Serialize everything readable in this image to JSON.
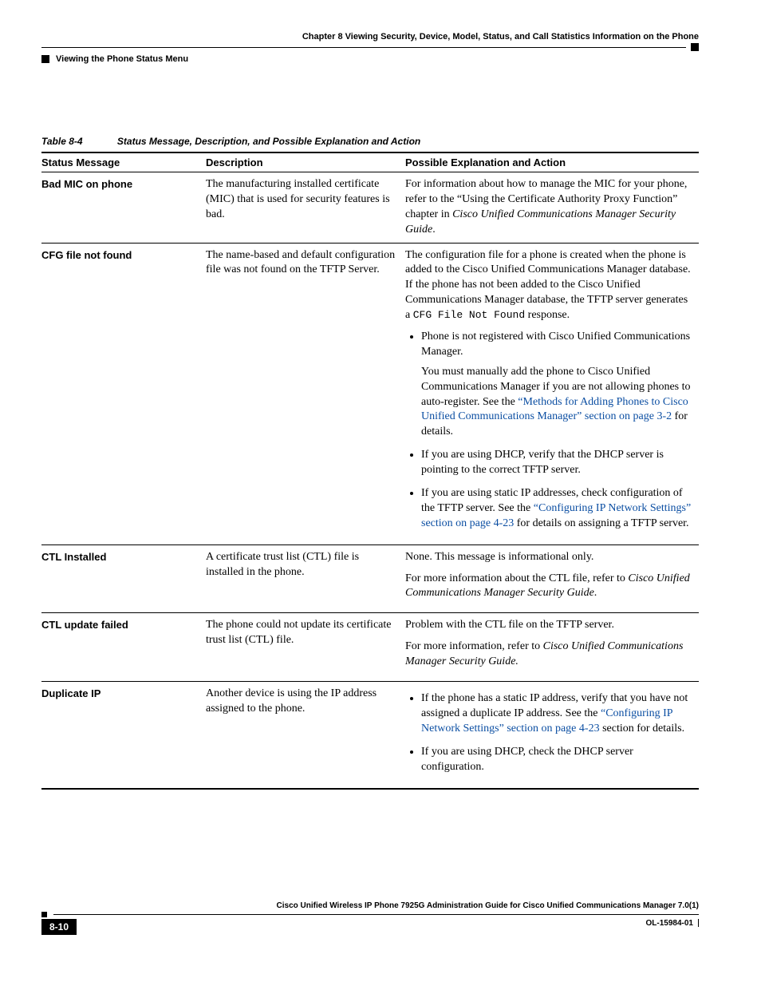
{
  "header": {
    "chapter_line": "Chapter 8    Viewing Security, Device, Model, Status, and Call Statistics Information on the Phone",
    "section_line": "Viewing the Phone Status Menu"
  },
  "table": {
    "number": "Table 8-4",
    "title": "Status Message, Description, and Possible Explanation and Action",
    "columns": {
      "c1": "Status Message",
      "c2": "Description",
      "c3": "Possible Explanation and Action"
    },
    "rows": {
      "r1": {
        "msg": "Bad MIC on phone",
        "desc": "The manufacturing installed certificate (MIC) that is used for security features is bad.",
        "action_pre": "For information about how to manage the MIC for your phone, refer to the “Using the Certificate Authority Proxy Function” chapter in ",
        "action_italic": "Cisco Unified Communications Manager Security Guide",
        "action_post": "."
      },
      "r2": {
        "msg": "CFG file not found",
        "desc": "The name-based and default configuration file was not found on the TFTP Server.",
        "p1a": "The configuration file for a phone is created when the phone is added to the Cisco Unified Communications Manager database. If the phone has not been added to the Cisco Unified Communications Manager database, the TFTP server generates a ",
        "p1_code": "CFG File Not Found",
        "p1b": " response.",
        "b1": "Phone is not registered with Cisco Unified Communications Manager.",
        "b1_sub_a": "You must manually add the phone to Cisco Unified Communications Manager if you are not allowing phones to auto-register. See the ",
        "b1_sub_link": "“Methods for Adding Phones to Cisco Unified Communications Manager” section on page 3-2",
        "b1_sub_b": " for details.",
        "b2": "If you are using DHCP, verify that the DHCP server is pointing to the correct TFTP server.",
        "b3_a": "If you are using static IP addresses, check configuration of the TFTP server. See the ",
        "b3_link": "“Configuring IP Network Settings” section on page 4-23",
        "b3_b": " for details on assigning a TFTP server."
      },
      "r3": {
        "msg": "CTL Installed",
        "desc": "A certificate trust list (CTL) file is installed in the phone.",
        "p1": "None. This message is informational only.",
        "p2a": "For more information about the CTL file, refer to ",
        "p2_italic": "Cisco Unified Communications Manager Security Guide",
        "p2b": "."
      },
      "r4": {
        "msg": "CTL update failed",
        "desc": "The phone could not update its certificate trust list (CTL) file.",
        "p1": "Problem with the CTL file on the TFTP server.",
        "p2a": "For more information, refer to ",
        "p2_italic": "Cisco Unified Communications Manager Security Guide.",
        "p2b": ""
      },
      "r5": {
        "msg": "Duplicate IP",
        "desc": "Another device is using the IP address assigned to the phone.",
        "b1_a": "If the phone has a static IP address, verify that you have not assigned a duplicate IP address. See the ",
        "b1_link": "“Configuring IP Network Settings” section on page 4-23",
        "b1_b": " section for details.",
        "b2": "If you are using DHCP, check the DHCP server configuration."
      }
    }
  },
  "footer": {
    "guide_title": "Cisco Unified Wireless IP Phone 7925G Administration Guide for Cisco Unified Communications Manager 7.0(1)",
    "page_num": "8-10",
    "doc_id": "OL-15984-01"
  }
}
